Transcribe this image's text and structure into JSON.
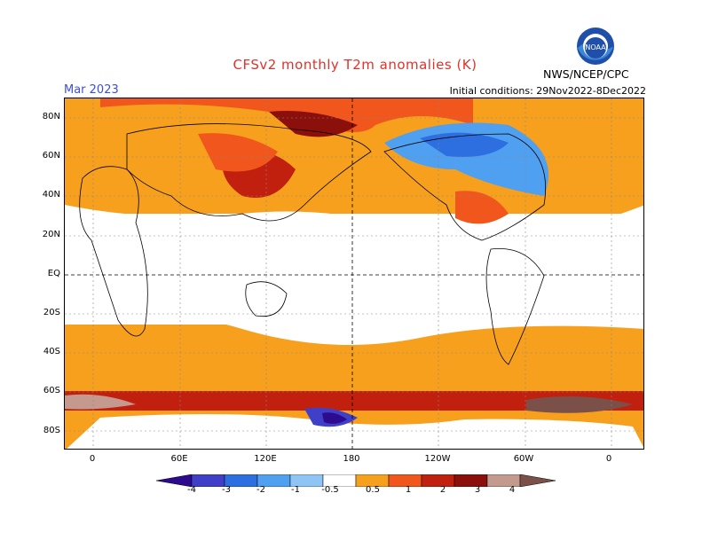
{
  "header": {
    "title": "CFSv2 monthly T2m anomalies (K)",
    "forecast_month": "Mar 2023",
    "initial_conditions": "Initial conditions: 29Nov2022-8Dec2022",
    "organization": "NWS/NCEP/CPC",
    "logo_text": "NOAA"
  },
  "map": {
    "lat_labels": [
      "80N",
      "60N",
      "40N",
      "20N",
      "EQ",
      "20S",
      "40S",
      "60S",
      "80S"
    ],
    "lon_labels": [
      "0",
      "60E",
      "120E",
      "180",
      "120W",
      "60W",
      "0"
    ]
  },
  "colorbar": {
    "labels": [
      "-4",
      "-3",
      "-2",
      "-1",
      "-0.5",
      "0.5",
      "1",
      "2",
      "3",
      "4"
    ],
    "colors": [
      "#2d0b8f",
      "#3f3fc8",
      "#2d6fe0",
      "#4fa0f0",
      "#8ec5f5",
      "#ffffff",
      "#f7a01e",
      "#f1561c",
      "#c2200f",
      "#8b0f0a",
      "#c49a8e",
      "#7a5048"
    ]
  }
}
